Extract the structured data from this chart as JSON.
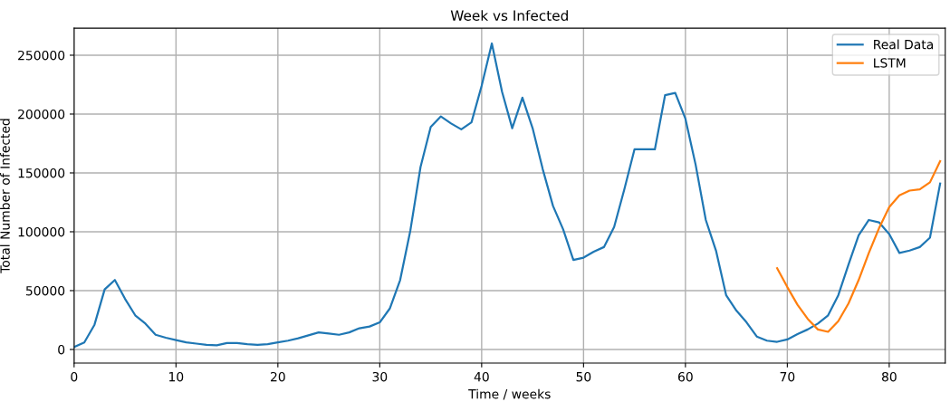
{
  "chart_data": {
    "type": "line",
    "title": "Week vs Infected",
    "xlabel": "Time / weeks",
    "ylabel": "Total Number of Infected",
    "xlim": [
      0,
      85.5
    ],
    "xticks": [
      0,
      10,
      20,
      30,
      40,
      50,
      60,
      70,
      80
    ],
    "ylim": [
      -11500,
      273000
    ],
    "yticks": [
      0,
      50000,
      100000,
      150000,
      200000,
      250000
    ],
    "grid": true,
    "legend": "top right",
    "line_style": "solid",
    "marker": "none",
    "series": [
      {
        "name": "Real Data",
        "color": "#1f77b4",
        "x": [
          0,
          1,
          2,
          3,
          4,
          5,
          6,
          7,
          8,
          9,
          10,
          11,
          12,
          13,
          14,
          15,
          16,
          17,
          18,
          19,
          20,
          21,
          22,
          23,
          24,
          25,
          26,
          27,
          28,
          29,
          30,
          31,
          32,
          33,
          34,
          35,
          36,
          37,
          38,
          39,
          40,
          41,
          42,
          43,
          44,
          45,
          46,
          47,
          48,
          49,
          50,
          51,
          52,
          53,
          54,
          55,
          56,
          57,
          58,
          59,
          60,
          61,
          62,
          63,
          64,
          65,
          66,
          67,
          68,
          69,
          70,
          71,
          72,
          73,
          74,
          75,
          76,
          77,
          78,
          79,
          80,
          81,
          82,
          83,
          84,
          85
        ],
        "values": [
          2000,
          6000,
          21000,
          51000,
          59000,
          43000,
          29000,
          22000,
          12500,
          10000,
          8000,
          6000,
          5000,
          4000,
          3500,
          5500,
          5500,
          4500,
          4000,
          4500,
          6000,
          7500,
          9500,
          12000,
          14500,
          13500,
          12500,
          14500,
          18000,
          19500,
          23000,
          35000,
          59000,
          101000,
          155000,
          189000,
          198000,
          192000,
          187000,
          193000,
          224000,
          260000,
          219000,
          188000,
          214000,
          188000,
          153000,
          122000,
          102000,
          76000,
          78000,
          83000,
          87000,
          104000,
          136000,
          170000,
          170000,
          170000,
          216000,
          218000,
          196000,
          157000,
          110000,
          84000,
          46000,
          33000,
          23000,
          11000,
          7500,
          6500,
          8500,
          13000,
          17000,
          22000,
          29000,
          46000,
          72000,
          97000,
          110000,
          108000,
          98000,
          82000,
          84000,
          87000,
          95000,
          141000
        ]
      },
      {
        "name": "LSTM",
        "color": "#ff7f0e",
        "x": [
          69,
          70,
          71,
          72,
          73,
          74,
          75,
          76,
          77,
          78,
          79,
          80,
          81,
          82,
          83,
          84,
          85
        ],
        "values": [
          69000,
          53000,
          38000,
          26000,
          17000,
          15000,
          24000,
          39000,
          59000,
          82000,
          103000,
          121000,
          131000,
          135000,
          136000,
          142000,
          160000
        ]
      }
    ]
  }
}
